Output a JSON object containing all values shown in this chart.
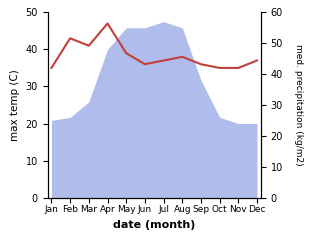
{
  "months": [
    "Jan",
    "Feb",
    "Mar",
    "Apr",
    "May",
    "Jun",
    "Jul",
    "Aug",
    "Sep",
    "Oct",
    "Nov",
    "Dec"
  ],
  "x": [
    0,
    1,
    2,
    3,
    4,
    5,
    6,
    7,
    8,
    9,
    10,
    11
  ],
  "temperature": [
    35,
    43,
    41,
    47,
    39,
    36,
    37,
    38,
    36,
    35,
    35,
    37
  ],
  "precipitation": [
    25,
    26,
    31,
    48,
    55,
    55,
    57,
    55,
    38,
    26,
    24,
    24
  ],
  "temp_ylim": [
    0,
    50
  ],
  "precip_ylim": [
    0,
    60
  ],
  "temp_color": "#c0413a",
  "precip_fill_color": "#b0bcec",
  "xlabel": "date (month)",
  "ylabel_left": "max temp (C)",
  "ylabel_right": "med. precipitation (kg/m2)",
  "bg_color": "#ffffff",
  "left_ticks": [
    0,
    10,
    20,
    30,
    40,
    50
  ],
  "right_ticks": [
    0,
    10,
    20,
    30,
    40,
    50,
    60
  ]
}
